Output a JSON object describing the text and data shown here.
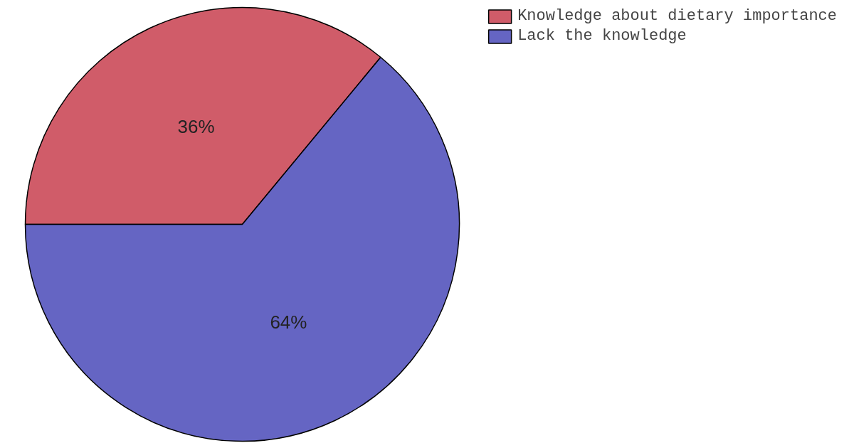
{
  "chart_data": {
    "type": "pie",
    "categories": [
      "Knowledge about dietary importance",
      "Lack the knowledge"
    ],
    "values": [
      36,
      64
    ],
    "colors": [
      "#c8404f",
      "#4a4ab8"
    ],
    "value_labels": [
      "36%",
      "64%"
    ],
    "legend": "top right"
  }
}
